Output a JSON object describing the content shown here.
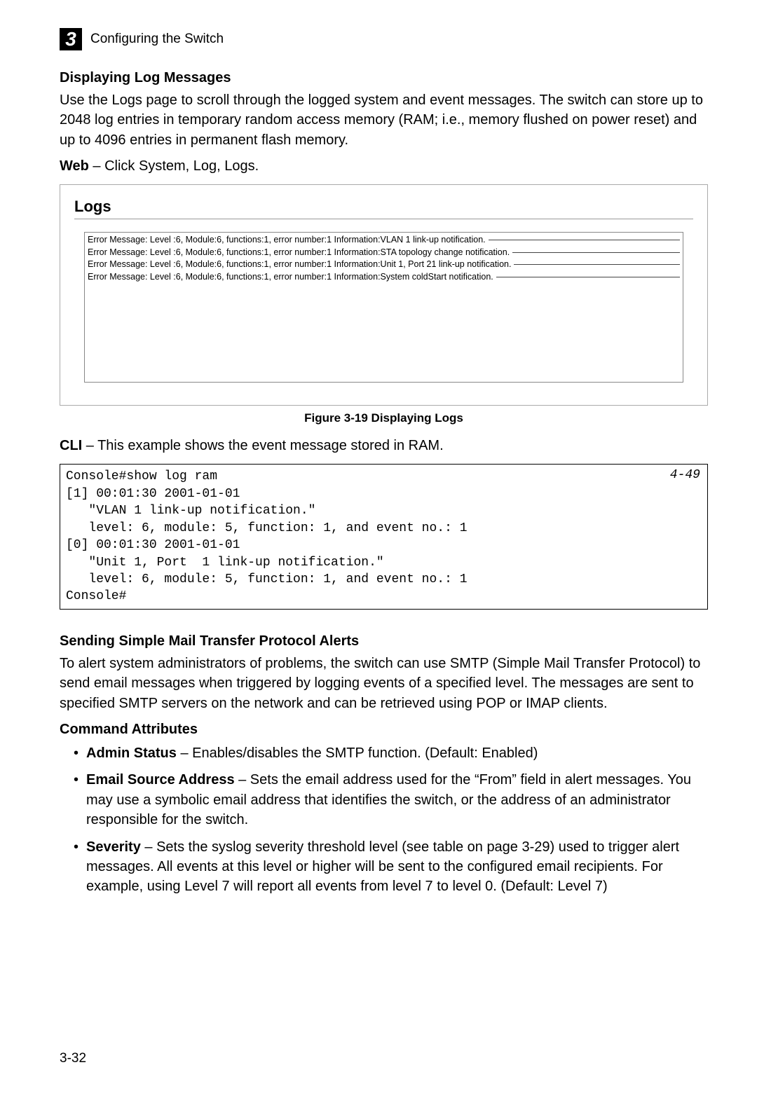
{
  "chapter": {
    "num": "3",
    "title": "Configuring the Switch"
  },
  "section1": {
    "title": "Displaying Log Messages",
    "para": "Use the Logs page to scroll through the logged system and event messages. The switch can store up to 2048 log entries in temporary random access memory (RAM; i.e., memory flushed on power reset) and up to 4096 entries in permanent flash memory.",
    "web_label": "Web",
    "web_text": " – Click System, Log, Logs."
  },
  "logs_panel": {
    "title": "Logs",
    "rows": [
      "Error Message: Level :6, Module:6, functions:1, error number:1 Information:VLAN 1 link-up notification.",
      "Error Message: Level :6, Module:6, functions:1, error number:1 Information:STA topology change notification.",
      "Error Message: Level :6, Module:6, functions:1, error number:1 Information:Unit 1, Port 21 link-up notification.",
      "Error Message: Level :6, Module:6, functions:1, error number:1 Information:System coldStart notification."
    ]
  },
  "figure_caption": "Figure 3-19   Displaying Logs",
  "cli": {
    "label": "CLI",
    "desc": " – This example shows the event message stored in RAM.",
    "ref": "4-49",
    "text": "Console#show log ram\n[1] 00:01:30 2001-01-01\n   \"VLAN 1 link-up notification.\"\n   level: 6, module: 5, function: 1, and event no.: 1\n[0] 00:01:30 2001-01-01\n   \"Unit 1, Port  1 link-up notification.\"\n   level: 6, module: 5, function: 1, and event no.: 1\nConsole#"
  },
  "section2": {
    "title": "Sending Simple Mail Transfer Protocol Alerts",
    "para": "To alert system administrators of problems, the switch can use SMTP (Simple Mail Transfer Protocol) to send email messages when triggered by logging events of a specified level. The messages are sent to specified SMTP servers on the network and can be retrieved using POP or IMAP clients.",
    "cmd_attr_title": "Command Attributes",
    "attrs": [
      {
        "name": "Admin Status",
        "desc": " – Enables/disables the SMTP function. (Default: Enabled)"
      },
      {
        "name": "Email Source Address",
        "desc": " – Sets the email address used for the “From” field in alert messages. You may use a symbolic email address that identifies the switch, or the address of an administrator responsible for the switch."
      },
      {
        "name": "Severity",
        "desc": " – Sets the syslog severity threshold level (see table on page 3-29) used to trigger alert messages. All events at this level or higher will be sent to the configured email recipients. For example, using Level 7 will report all events from level 7 to level 0. (Default: Level 7)"
      }
    ]
  },
  "page_number": "3-32"
}
